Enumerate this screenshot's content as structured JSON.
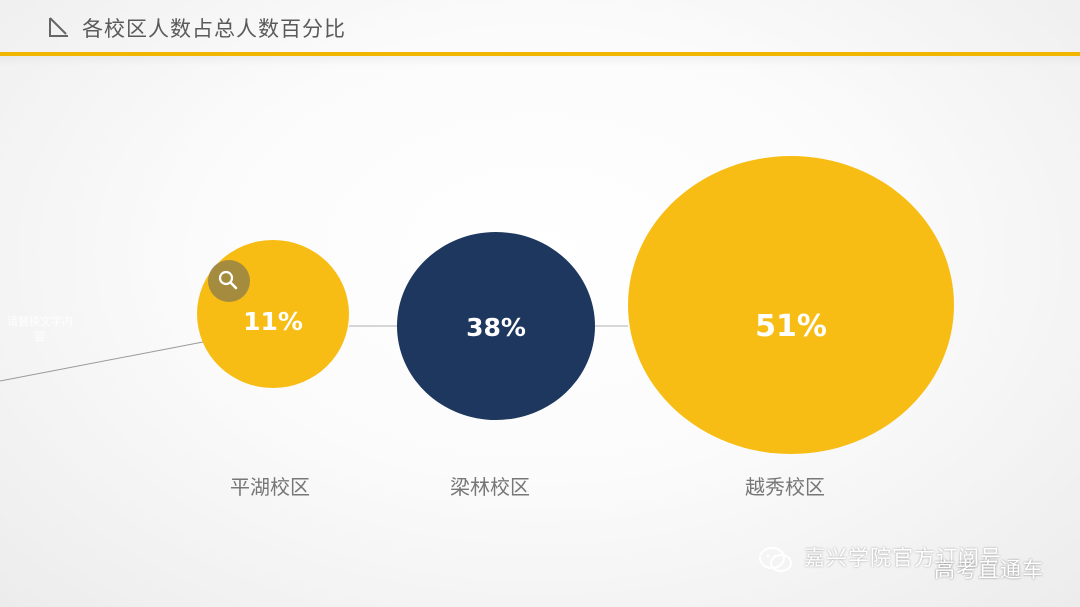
{
  "page": {
    "title": "各校区人数占总人数百分比",
    "accent": "#f2b600",
    "side_note": "请替换文字内容"
  },
  "chart_data": {
    "type": "bubble",
    "title": "",
    "categories": [
      "平湖校区",
      "梁林校区",
      "越秀校区"
    ],
    "values": [
      11,
      38,
      51
    ],
    "labels": [
      "11%",
      "38%",
      "51%"
    ],
    "colors": [
      "#f7bd14",
      "#1d375e",
      "#f7bd14"
    ],
    "legend": "none",
    "grid": false
  },
  "watermark": {
    "line1": "嘉兴学院官方订阅号",
    "line2": "高考直通车"
  },
  "icons": {
    "corner": "arrow-corner-icon",
    "magnifier": "magnifier-icon",
    "wechat": "wechat-icon"
  }
}
